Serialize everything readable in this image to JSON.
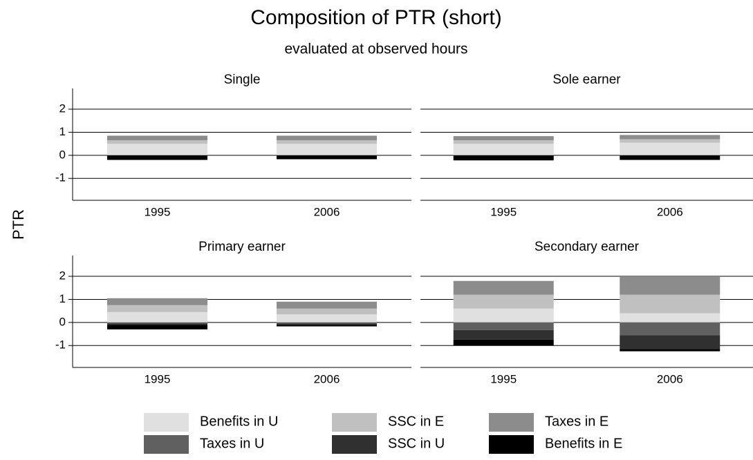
{
  "chart_data": {
    "type": "stacked-bar",
    "title": "Composition of PTR (short)",
    "subtitle": "evaluated at observed hours",
    "y_label": "PTR",
    "ylim": [
      -1.95,
      2.6
    ],
    "yticks": [
      -1,
      0,
      1,
      2
    ],
    "grid": true,
    "panels": [
      {
        "title": "Single",
        "categories": [
          "1995",
          "2006"
        ]
      },
      {
        "title": "Sole earner",
        "categories": [
          "1995",
          "2006"
        ]
      },
      {
        "title": "Primary earner",
        "categories": [
          "1995",
          "2006"
        ]
      },
      {
        "title": "Secondary earner",
        "categories": [
          "1995",
          "2006"
        ]
      }
    ],
    "series": [
      {
        "name": "Benefits in U",
        "color": "#e0e0e0",
        "values": [
          [
            0.5,
            0.5
          ],
          [
            0.5,
            0.55
          ],
          [
            0.45,
            0.35
          ],
          [
            0.6,
            0.4
          ]
        ]
      },
      {
        "name": "SSC in E",
        "color": "#c0c0c0",
        "values": [
          [
            0.15,
            0.15
          ],
          [
            0.15,
            0.15
          ],
          [
            0.3,
            0.25
          ],
          [
            0.6,
            0.8
          ]
        ]
      },
      {
        "name": "Taxes in E",
        "color": "#8c8c8c",
        "values": [
          [
            0.2,
            0.2
          ],
          [
            0.18,
            0.18
          ],
          [
            0.3,
            0.3
          ],
          [
            0.6,
            0.8
          ]
        ]
      },
      {
        "name": "Taxes in U",
        "color": "#606060",
        "values": [
          [
            0,
            0
          ],
          [
            0,
            0
          ],
          [
            -0.05,
            -0.05
          ],
          [
            -0.33,
            -0.55
          ]
        ]
      },
      {
        "name": "SSC in U",
        "color": "#303030",
        "values": [
          [
            0,
            0
          ],
          [
            0,
            0
          ],
          [
            -0.05,
            -0.05
          ],
          [
            -0.42,
            -0.6
          ]
        ]
      },
      {
        "name": "Benefits in E",
        "color": "#000000",
        "values": [
          [
            -0.2,
            -0.17
          ],
          [
            -0.22,
            -0.2
          ],
          [
            -0.2,
            -0.07
          ],
          [
            -0.25,
            -0.1
          ]
        ]
      }
    ]
  }
}
